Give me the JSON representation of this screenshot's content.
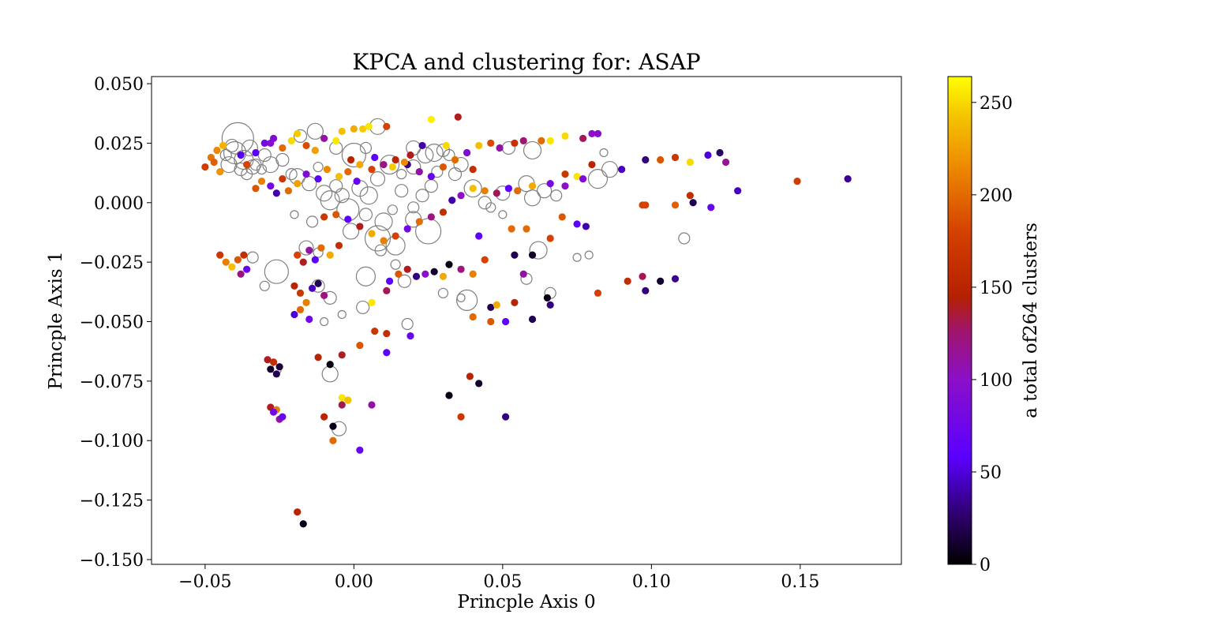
{
  "chart_data": {
    "type": "scatter",
    "title": "KPCA and clustering for: ASAP",
    "xlabel": "Princple Axis 0",
    "ylabel": "Princple Axis 1",
    "xlim": [
      -0.068,
      0.184
    ],
    "ylim": [
      -0.152,
      0.053
    ],
    "xticks": [
      -0.05,
      0.0,
      0.05,
      0.1,
      0.15
    ],
    "xtick_labels": [
      "−0.05",
      "0.00",
      "0.05",
      "0.10",
      "0.15"
    ],
    "yticks": [
      0.05,
      0.025,
      0.0,
      -0.025,
      -0.05,
      -0.075,
      -0.1,
      -0.125,
      -0.15
    ],
    "ytick_labels": [
      "0.050",
      "0.025",
      "0.000",
      "−0.025",
      "−0.050",
      "−0.075",
      "−0.100",
      "−0.125",
      "−0.150"
    ],
    "colorbar": {
      "label": "a total of264 clusters",
      "colormap": "gnuplot",
      "range": [
        0,
        264
      ],
      "ticks": [
        0,
        50,
        100,
        150,
        200,
        250
      ],
      "tick_labels": [
        "0",
        "50",
        "100",
        "150",
        "200",
        "250"
      ]
    },
    "noise_points_style": {
      "fill": "none",
      "stroke": "#808080"
    },
    "noise_points": [
      [
        -0.039,
        0.027,
        20
      ],
      [
        -0.04,
        0.021,
        14
      ],
      [
        -0.037,
        0.018,
        12
      ],
      [
        -0.042,
        0.016,
        10
      ],
      [
        -0.035,
        0.023,
        10
      ],
      [
        -0.038,
        0.014,
        8
      ],
      [
        -0.036,
        0.012,
        7
      ],
      [
        -0.033,
        0.016,
        7
      ],
      [
        -0.03,
        0.02,
        8
      ],
      [
        -0.028,
        0.016,
        10
      ],
      [
        -0.041,
        0.024,
        8
      ],
      [
        -0.034,
        0.015,
        9
      ],
      [
        -0.031,
        0.014,
        6
      ],
      [
        -0.043,
        0.02,
        7
      ],
      [
        -0.024,
        0.018,
        8
      ],
      [
        -0.018,
        0.028,
        8
      ],
      [
        -0.013,
        0.03,
        10
      ],
      [
        -0.019,
        0.011,
        10
      ],
      [
        -0.015,
        0.008,
        9
      ],
      [
        -0.021,
        0.012,
        7
      ],
      [
        -0.012,
        0.015,
        6
      ],
      [
        -0.006,
        0.023,
        8
      ],
      [
        0.0,
        0.02,
        15
      ],
      [
        0.008,
        0.032,
        10
      ],
      [
        -0.01,
        0.004,
        10
      ],
      [
        -0.008,
        0.001,
        12
      ],
      [
        -0.006,
        0.007,
        8
      ],
      [
        -0.004,
        0.003,
        9
      ],
      [
        -0.002,
        -0.003,
        14
      ],
      [
        0.002,
        0.006,
        10
      ],
      [
        0.005,
        0.003,
        11
      ],
      [
        0.008,
        0.01,
        9
      ],
      [
        0.012,
        0.016,
        12
      ],
      [
        0.016,
        0.005,
        8
      ],
      [
        0.01,
        -0.008,
        11
      ],
      [
        0.004,
        -0.005,
        8
      ],
      [
        -0.001,
        -0.012,
        10
      ],
      [
        0.008,
        -0.015,
        16
      ],
      [
        0.014,
        -0.018,
        12
      ],
      [
        0.02,
        -0.007,
        10
      ],
      [
        0.025,
        -0.012,
        16
      ],
      [
        0.024,
        0.02,
        10
      ],
      [
        0.02,
        0.015,
        9
      ],
      [
        0.03,
        0.022,
        8
      ],
      [
        0.028,
        0.013,
        7
      ],
      [
        0.036,
        0.016,
        9
      ],
      [
        0.034,
        0.012,
        8
      ],
      [
        0.04,
        0.006,
        11
      ],
      [
        0.044,
        0.0,
        8
      ],
      [
        0.05,
        0.004,
        9
      ],
      [
        0.052,
        0.023,
        8
      ],
      [
        0.058,
        0.008,
        10
      ],
      [
        0.06,
        0.002,
        10
      ],
      [
        0.064,
        0.005,
        9
      ],
      [
        0.068,
        0.003,
        7
      ],
      [
        0.06,
        0.022,
        11
      ],
      [
        0.082,
        0.01,
        12
      ],
      [
        0.086,
        0.014,
        10
      ],
      [
        0.084,
        0.021,
        5
      ],
      [
        0.111,
        -0.015,
        7
      ],
      [
        0.075,
        -0.023,
        5
      ],
      [
        0.079,
        -0.022,
        5
      ],
      [
        0.062,
        -0.02,
        11
      ],
      [
        0.066,
        -0.038,
        7
      ],
      [
        0.058,
        -0.032,
        7
      ],
      [
        0.038,
        -0.041,
        13
      ],
      [
        0.03,
        -0.038,
        6
      ],
      [
        0.004,
        -0.031,
        12
      ],
      [
        -0.026,
        -0.029,
        15
      ],
      [
        -0.012,
        -0.035,
        8
      ],
      [
        -0.008,
        -0.04,
        8
      ],
      [
        -0.034,
        -0.023,
        7
      ],
      [
        -0.03,
        -0.035,
        6
      ],
      [
        0.003,
        -0.044,
        8
      ],
      [
        0.018,
        -0.051,
        7
      ],
      [
        -0.008,
        -0.072,
        10
      ],
      [
        -0.005,
        -0.095,
        9
      ],
      [
        -0.026,
        -0.07,
        6
      ],
      [
        0.017,
        -0.033,
        8
      ],
      [
        0.023,
        0.003,
        8
      ],
      [
        0.026,
        0.007,
        8
      ],
      [
        0.02,
        -0.002,
        7
      ],
      [
        0.013,
        -0.003,
        6
      ],
      [
        0.032,
        0.02,
        7
      ],
      [
        0.046,
        -0.002,
        6
      ],
      [
        0.05,
        -0.005,
        5
      ],
      [
        0.027,
        0.021,
        11
      ],
      [
        0.02,
        0.023,
        9
      ],
      [
        0.004,
        0.023,
        7
      ],
      [
        0.009,
        -0.02,
        7
      ],
      [
        -0.016,
        -0.019,
        9
      ],
      [
        -0.012,
        -0.021,
        6
      ],
      [
        0.036,
        -0.04,
        5
      ],
      [
        0.014,
        -0.026,
        6
      ],
      [
        -0.014,
        -0.008,
        7
      ],
      [
        -0.02,
        -0.005,
        5
      ],
      [
        -0.004,
        -0.047,
        5
      ],
      [
        -0.01,
        -0.05,
        5
      ],
      [
        0.016,
        0.012,
        6
      ]
    ],
    "cluster_points": [
      [
        -0.05,
        0.015,
        175
      ],
      [
        -0.048,
        0.019,
        205
      ],
      [
        -0.046,
        0.022,
        215
      ],
      [
        -0.044,
        0.024,
        235
      ],
      [
        -0.047,
        0.017,
        195
      ],
      [
        -0.033,
        0.021,
        60
      ],
      [
        -0.03,
        0.025,
        80
      ],
      [
        -0.027,
        0.027,
        90
      ],
      [
        -0.024,
        0.023,
        200
      ],
      [
        -0.021,
        0.026,
        250
      ],
      [
        -0.019,
        0.029,
        245
      ],
      [
        -0.016,
        0.024,
        185
      ],
      [
        -0.013,
        0.022,
        225
      ],
      [
        -0.01,
        0.027,
        110
      ],
      [
        -0.006,
        0.026,
        255
      ],
      [
        -0.004,
        0.03,
        240
      ],
      [
        0.0,
        0.031,
        230
      ],
      [
        0.003,
        0.031,
        245
      ],
      [
        0.005,
        0.032,
        255
      ],
      [
        0.011,
        0.032,
        180
      ],
      [
        0.026,
        0.035,
        258
      ],
      [
        0.035,
        0.036,
        140
      ],
      [
        -0.033,
        0.006,
        190
      ],
      [
        -0.031,
        0.009,
        210
      ],
      [
        -0.028,
        0.007,
        80
      ],
      [
        -0.026,
        0.004,
        40
      ],
      [
        -0.024,
        0.01,
        170
      ],
      [
        -0.022,
        0.005,
        200
      ],
      [
        -0.019,
        0.008,
        225
      ],
      [
        -0.016,
        0.012,
        90
      ],
      [
        -0.012,
        0.01,
        60
      ],
      [
        -0.009,
        0.014,
        215
      ],
      [
        -0.005,
        0.011,
        240
      ],
      [
        -0.002,
        0.013,
        200
      ],
      [
        0.002,
        0.016,
        230
      ],
      [
        0.006,
        0.014,
        180
      ],
      [
        0.01,
        0.016,
        120
      ],
      [
        0.014,
        0.018,
        150
      ],
      [
        0.018,
        0.016,
        30
      ],
      [
        0.022,
        0.013,
        110
      ],
      [
        0.026,
        0.011,
        70
      ],
      [
        0.03,
        0.015,
        190
      ],
      [
        0.034,
        0.018,
        200
      ],
      [
        0.038,
        0.021,
        220
      ],
      [
        0.042,
        0.024,
        240
      ],
      [
        0.046,
        0.025,
        185
      ],
      [
        0.054,
        0.025,
        165
      ],
      [
        0.057,
        0.026,
        125
      ],
      [
        0.063,
        0.026,
        200
      ],
      [
        0.066,
        0.026,
        255
      ],
      [
        0.071,
        0.028,
        250
      ],
      [
        0.077,
        0.027,
        130
      ],
      [
        0.08,
        0.029,
        100
      ],
      [
        0.082,
        0.029,
        95
      ],
      [
        0.098,
        0.018,
        30
      ],
      [
        0.103,
        0.018,
        190
      ],
      [
        0.108,
        0.019,
        170
      ],
      [
        0.113,
        0.017,
        250
      ],
      [
        0.119,
        0.02,
        50
      ],
      [
        0.123,
        0.021,
        25
      ],
      [
        0.125,
        0.017,
        115
      ],
      [
        0.129,
        0.005,
        45
      ],
      [
        0.166,
        0.01,
        35
      ],
      [
        0.149,
        0.009,
        175
      ],
      [
        0.113,
        0.003,
        160
      ],
      [
        0.114,
        0.0,
        20
      ],
      [
        0.12,
        -0.002,
        70
      ],
      [
        0.108,
        -0.001,
        195
      ],
      [
        0.098,
        -0.001,
        180
      ],
      [
        0.071,
        0.012,
        170
      ],
      [
        0.075,
        0.011,
        255
      ],
      [
        0.077,
        0.01,
        90
      ],
      [
        0.08,
        0.016,
        150
      ],
      [
        0.09,
        0.014,
        45
      ],
      [
        0.071,
        0.007,
        100
      ],
      [
        0.066,
        0.008,
        85
      ],
      [
        0.06,
        0.007,
        230
      ],
      [
        0.055,
        0.005,
        200
      ],
      [
        0.052,
        0.006,
        60
      ],
      [
        0.048,
        0.004,
        130
      ],
      [
        0.044,
        0.005,
        210
      ],
      [
        0.04,
        0.006,
        240
      ],
      [
        0.036,
        0.003,
        100
      ],
      [
        0.033,
        0.001,
        40
      ],
      [
        0.03,
        -0.004,
        160
      ],
      [
        0.026,
        -0.006,
        120
      ],
      [
        0.022,
        -0.008,
        200
      ],
      [
        0.018,
        -0.011,
        80
      ],
      [
        0.014,
        -0.014,
        180
      ],
      [
        0.01,
        -0.016,
        210
      ],
      [
        0.006,
        -0.013,
        230
      ],
      [
        0.002,
        -0.01,
        140
      ],
      [
        -0.002,
        -0.007,
        60
      ],
      [
        -0.006,
        -0.005,
        190
      ],
      [
        -0.01,
        -0.006,
        170
      ],
      [
        0.07,
        -0.006,
        190
      ],
      [
        0.075,
        -0.009,
        60
      ],
      [
        0.078,
        -0.01,
        40
      ],
      [
        0.066,
        -0.015,
        180
      ],
      [
        0.053,
        -0.011,
        200
      ],
      [
        -0.045,
        -0.022,
        170
      ],
      [
        -0.043,
        -0.025,
        210
      ],
      [
        -0.041,
        -0.027,
        240
      ],
      [
        -0.039,
        -0.024,
        190
      ],
      [
        -0.037,
        -0.022,
        160
      ],
      [
        -0.036,
        -0.028,
        70
      ],
      [
        -0.038,
        -0.03,
        120
      ],
      [
        -0.019,
        -0.022,
        180
      ],
      [
        -0.017,
        -0.025,
        140
      ],
      [
        -0.015,
        -0.02,
        110
      ],
      [
        -0.013,
        -0.024,
        60
      ],
      [
        -0.011,
        -0.019,
        200
      ],
      [
        -0.008,
        -0.022,
        230
      ],
      [
        -0.005,
        -0.018,
        160
      ],
      [
        -0.02,
        -0.035,
        150
      ],
      [
        -0.018,
        -0.038,
        170
      ],
      [
        -0.016,
        -0.042,
        210
      ],
      [
        -0.014,
        -0.036,
        45
      ],
      [
        -0.012,
        -0.034,
        20
      ],
      [
        -0.01,
        -0.039,
        120
      ],
      [
        -0.02,
        -0.047,
        50
      ],
      [
        -0.018,
        -0.045,
        200
      ],
      [
        -0.015,
        -0.049,
        80
      ],
      [
        0.006,
        -0.042,
        255
      ],
      [
        0.011,
        -0.037,
        130
      ],
      [
        0.012,
        -0.033,
        60
      ],
      [
        0.015,
        -0.03,
        190
      ],
      [
        0.018,
        -0.028,
        140
      ],
      [
        0.021,
        -0.031,
        30
      ],
      [
        0.024,
        -0.03,
        100
      ],
      [
        0.027,
        -0.029,
        10
      ],
      [
        0.03,
        -0.031,
        230
      ],
      [
        0.032,
        -0.026,
        5
      ],
      [
        0.036,
        -0.028,
        120
      ],
      [
        0.04,
        -0.03,
        210
      ],
      [
        0.044,
        -0.024,
        180
      ],
      [
        0.046,
        -0.044,
        20
      ],
      [
        0.048,
        -0.043,
        230
      ],
      [
        0.046,
        -0.05,
        190
      ],
      [
        0.04,
        -0.048,
        200
      ],
      [
        0.051,
        -0.05,
        60
      ],
      [
        0.054,
        -0.042,
        150
      ],
      [
        0.057,
        -0.03,
        110
      ],
      [
        0.06,
        -0.049,
        20
      ],
      [
        0.065,
        -0.04,
        5
      ],
      [
        0.066,
        -0.043,
        30
      ],
      [
        0.082,
        -0.038,
        180
      ],
      [
        0.092,
        -0.033,
        160
      ],
      [
        0.097,
        -0.031,
        130
      ],
      [
        0.098,
        -0.037,
        30
      ],
      [
        0.103,
        -0.033,
        10
      ],
      [
        0.108,
        -0.032,
        35
      ],
      [
        0.097,
        -0.001,
        180
      ],
      [
        0.058,
        -0.011,
        200
      ],
      [
        0.042,
        -0.014,
        60
      ],
      [
        -0.004,
        -0.064,
        140
      ],
      [
        -0.012,
        -0.065,
        150
      ],
      [
        -0.008,
        -0.068,
        5
      ],
      [
        0.002,
        -0.06,
        190
      ],
      [
        0.007,
        -0.054,
        170
      ],
      [
        0.011,
        -0.055,
        160
      ],
      [
        0.011,
        -0.063,
        60
      ],
      [
        0.019,
        -0.056,
        70
      ],
      [
        -0.029,
        -0.066,
        140
      ],
      [
        -0.027,
        -0.067,
        160
      ],
      [
        -0.028,
        -0.07,
        10
      ],
      [
        -0.026,
        -0.072,
        20
      ],
      [
        -0.025,
        -0.069,
        15
      ],
      [
        -0.028,
        -0.086,
        140
      ],
      [
        -0.026,
        -0.087,
        210
      ],
      [
        -0.027,
        -0.088,
        80
      ],
      [
        -0.025,
        -0.091,
        110
      ],
      [
        -0.024,
        -0.09,
        70
      ],
      [
        -0.01,
        -0.09,
        150
      ],
      [
        -0.007,
        -0.094,
        5
      ],
      [
        -0.007,
        -0.1,
        200
      ],
      [
        -0.004,
        -0.082,
        255
      ],
      [
        -0.002,
        -0.083,
        240
      ],
      [
        -0.004,
        -0.085,
        130
      ],
      [
        0.006,
        -0.085,
        110
      ],
      [
        0.002,
        -0.104,
        70
      ],
      [
        0.032,
        -0.081,
        5
      ],
      [
        0.039,
        -0.073,
        150
      ],
      [
        0.042,
        -0.076,
        10
      ],
      [
        0.036,
        -0.09,
        170
      ],
      [
        0.051,
        -0.09,
        30
      ],
      [
        -0.019,
        -0.13,
        150
      ],
      [
        -0.017,
        -0.135,
        5
      ],
      [
        0.06,
        -0.022,
        10
      ],
      [
        0.054,
        -0.022,
        20
      ],
      [
        -0.028,
        0.025,
        95
      ],
      [
        -0.038,
        0.02,
        55
      ],
      [
        -0.036,
        0.016,
        180
      ],
      [
        -0.045,
        0.013,
        220
      ],
      [
        0.019,
        0.02,
        140
      ],
      [
        0.023,
        0.024,
        40
      ],
      [
        0.031,
        0.024,
        250
      ],
      [
        0.038,
        0.021,
        90
      ],
      [
        0.04,
        0.014,
        160
      ],
      [
        0.049,
        0.023,
        110
      ],
      [
        0.017,
        0.017,
        215
      ],
      [
        0.013,
        0.015,
        245
      ],
      [
        0.007,
        0.019,
        60
      ],
      [
        -0.001,
        0.018,
        150
      ],
      [
        0.001,
        0.009,
        70
      ]
    ]
  }
}
